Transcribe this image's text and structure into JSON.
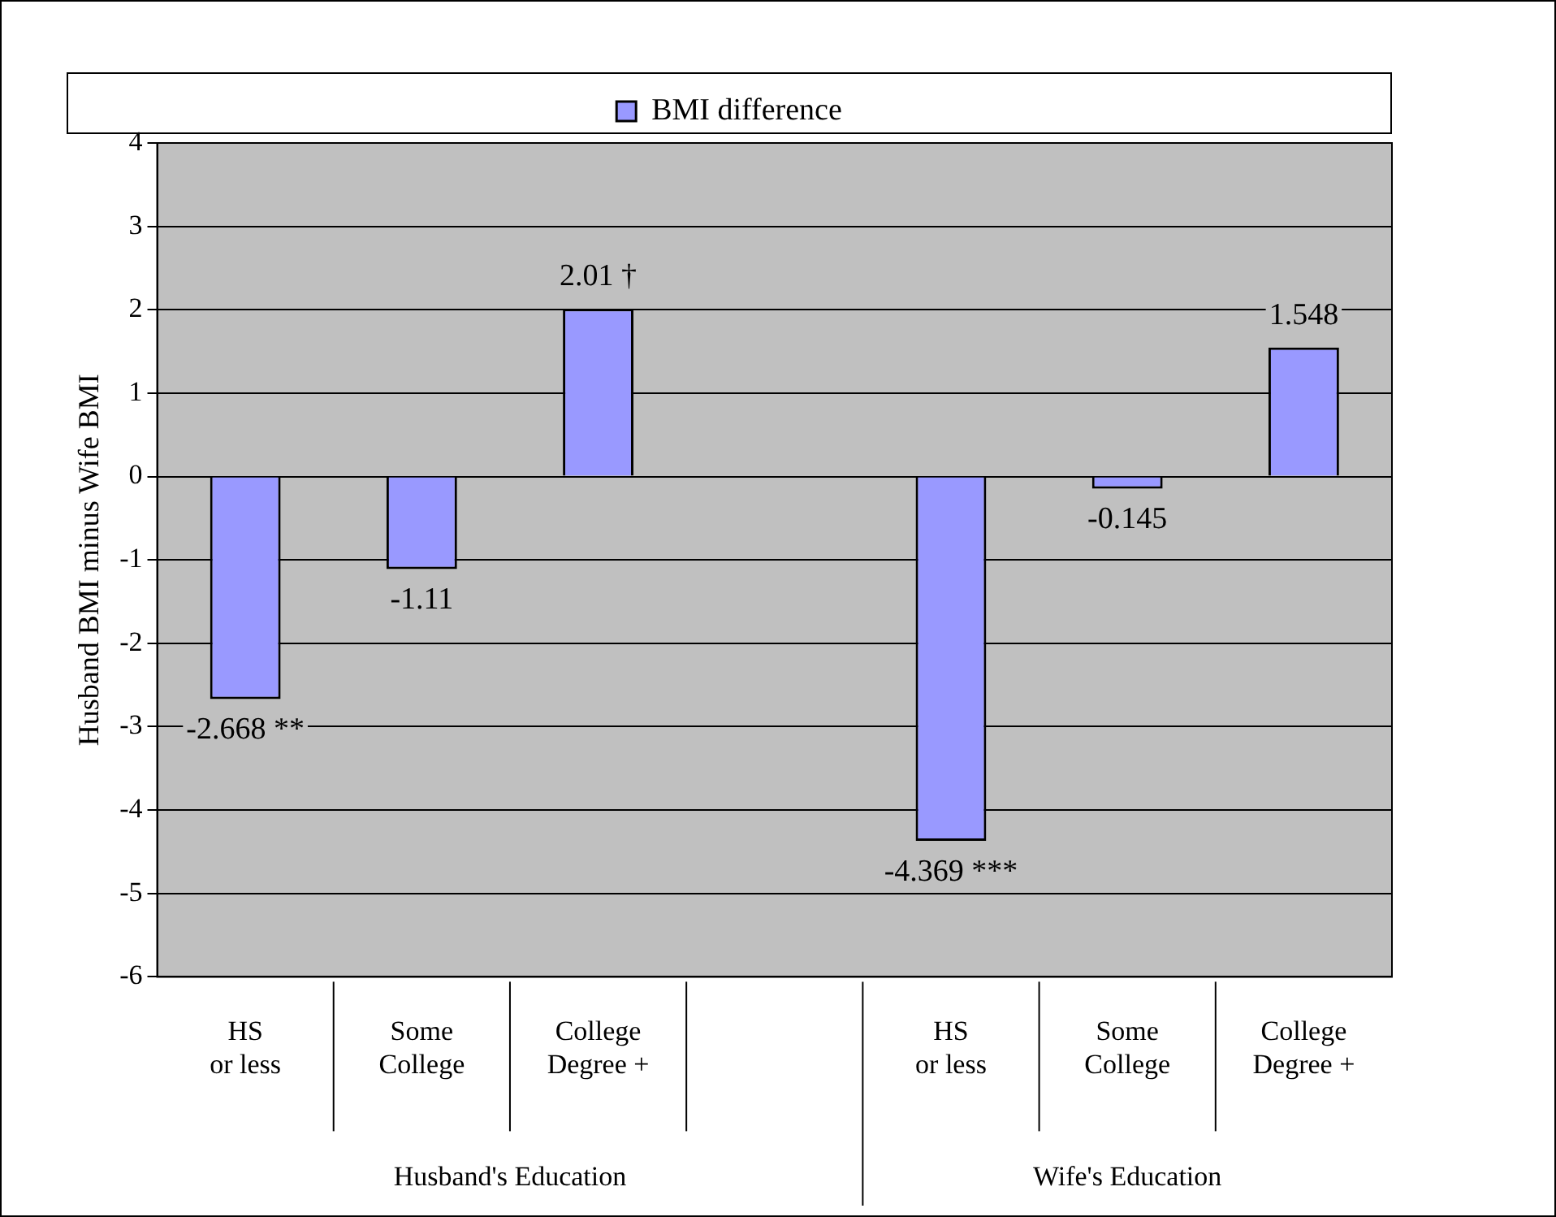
{
  "chart_data": {
    "type": "bar",
    "ylabel": "Husband BMI minus Wife BMI",
    "categories": [
      "HS\nor less",
      "Some\nCollege",
      "College\nDegree +",
      null,
      "HS\nor less",
      "Some\nCollege",
      "College\nDegree +"
    ],
    "series": [
      {
        "name": "BMI difference",
        "color": "#9999ff",
        "values": [
          -2.668,
          -1.11,
          2.01,
          null,
          -4.369,
          -0.145,
          1.548
        ],
        "value_labels": [
          "-2.668 **",
          "-1.11",
          "2.01 †",
          null,
          "-4.369 ***",
          "-0.145",
          "1.548"
        ]
      }
    ],
    "ylim": [
      -6,
      4
    ],
    "yticks": [
      -6,
      -5,
      -4,
      -3,
      -2,
      -1,
      0,
      1,
      2,
      3,
      4
    ],
    "grid": "y",
    "legend": "top",
    "annotations": [
      "Husband's Education",
      "Wife's Education"
    ]
  }
}
